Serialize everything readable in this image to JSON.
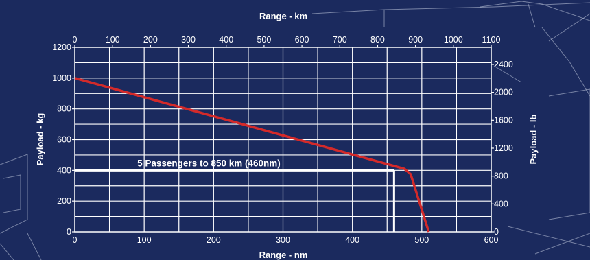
{
  "chart_data": {
    "type": "line",
    "xlabel_top": "Range - km",
    "xlabel_bottom": "Range - nm",
    "ylabel_left": "Payload - kg",
    "ylabel_right": "Payload - lb",
    "x_nm_range": [
      0,
      600
    ],
    "x_km_range": [
      0,
      1100
    ],
    "y_kg_range": [
      0,
      1200
    ],
    "y_lb_range": [
      0,
      2645.5
    ],
    "x_nm_ticks": [
      0,
      100,
      200,
      300,
      400,
      500,
      600
    ],
    "x_km_ticks": [
      0,
      100,
      200,
      300,
      400,
      500,
      600,
      700,
      800,
      900,
      1000,
      1100
    ],
    "y_kg_ticks": [
      0,
      200,
      400,
      600,
      800,
      1000,
      1200
    ],
    "y_lb_ticks": [
      0,
      400,
      800,
      1200,
      1600,
      2000,
      2400
    ],
    "grid": true,
    "series": [
      {
        "color": "#d42a2a",
        "x_nm": [
          0,
          475,
          484,
          510
        ],
        "y_kg": [
          1000,
          410,
          375,
          0
        ]
      }
    ],
    "annotation": {
      "text": "5 Passengers to 850 km (460nm)",
      "y_kg": 400,
      "x_nm": 460,
      "color": "#ffffff"
    }
  }
}
